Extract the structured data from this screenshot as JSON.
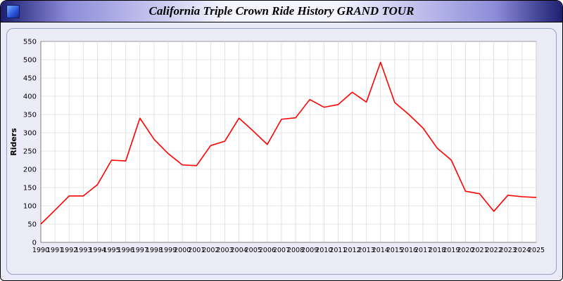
{
  "header": {
    "title": "California Triple Crown Ride History GRAND TOUR"
  },
  "icons": {
    "header_icon": "app-window-icon"
  },
  "colors": {
    "line": "#ff0000",
    "page_background": "#e9e9f7",
    "panel_background": "#ececf9",
    "plot_background": "#ffffff",
    "grid": "#dcdcdc",
    "axis": "#808080",
    "header_edge": "#1f1f72"
  },
  "chart_data": {
    "type": "line",
    "title": "California Triple Crown Ride History GRAND TOUR",
    "xlabel": "",
    "ylabel": "Riders",
    "ylim": [
      0,
      550
    ],
    "ytick_step": 50,
    "grid": true,
    "legend": "none",
    "x": [
      1990,
      1991,
      1992,
      1993,
      1994,
      1995,
      1996,
      1997,
      1998,
      1999,
      2000,
      2001,
      2002,
      2003,
      2004,
      2005,
      2006,
      2007,
      2008,
      2009,
      2010,
      2011,
      2012,
      2013,
      2014,
      2015,
      2016,
      2017,
      2018,
      2019,
      2020,
      2021,
      2022,
      2023,
      2024,
      2025
    ],
    "series": [
      {
        "name": "Riders",
        "color": "#ff0000",
        "values": [
          50,
          88,
          127,
          127,
          158,
          225,
          223,
          340,
          282,
          243,
          212,
          210,
          265,
          277,
          340,
          305,
          268,
          337,
          341,
          391,
          370,
          377,
          411,
          384,
          493,
          383,
          350,
          313,
          258,
          225,
          140,
          133,
          85,
          129,
          125,
          123
        ]
      }
    ]
  }
}
